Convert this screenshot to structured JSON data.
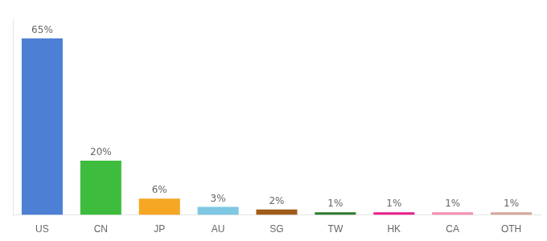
{
  "chart_data": {
    "type": "bar",
    "categories": [
      "US",
      "CN",
      "JP",
      "AU",
      "SG",
      "TW",
      "HK",
      "CA",
      "OTH"
    ],
    "values": [
      65,
      20,
      6,
      3,
      2,
      1,
      1,
      1,
      1
    ],
    "value_labels": [
      "65%",
      "20%",
      "6%",
      "3%",
      "2%",
      "1%",
      "1%",
      "1%",
      "1%"
    ],
    "colors": [
      "#4d7fd4",
      "#3dbc3d",
      "#f5a623",
      "#7ec8e3",
      "#a05c1a",
      "#2d7a2d",
      "#e91e8c",
      "#f48fb1",
      "#d4a898"
    ],
    "ylim": [
      0,
      72
    ],
    "data_labels": true,
    "tick_labels": "x",
    "grid": false
  }
}
